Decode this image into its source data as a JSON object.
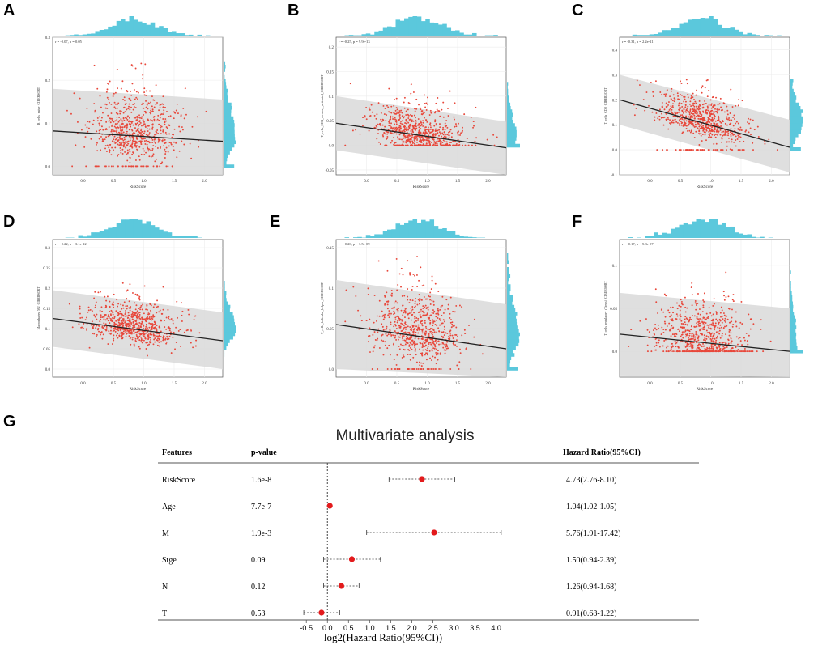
{
  "figure_labels": [
    "A",
    "B",
    "C",
    "D",
    "E",
    "F",
    "G"
  ],
  "colors": {
    "point": "#e8473a",
    "hist": "#5bc8dc",
    "band": "#d9d9d9",
    "line": "#222222",
    "marker": "#e31a1c"
  },
  "chart_data": [
    {
      "type": "scatter",
      "panel": "A",
      "xlabel": "RiskScore",
      "ylabel": "B_cells_naive_CIBERSORT",
      "annotation": "r = -0.07, p = 0.05",
      "xlim": [
        -0.5,
        2.3
      ],
      "ylim": [
        -0.02,
        0.3
      ],
      "xticks": [
        0.0,
        0.5,
        1.0,
        1.5,
        2.0
      ],
      "yticks": [
        0.0,
        0.1,
        0.2,
        0.3
      ],
      "n_points": 720,
      "x_mean": 0.85,
      "x_sd": 0.38,
      "floor": 0.0,
      "fit": {
        "x": [
          -0.5,
          2.3
        ],
        "y": [
          0.082,
          0.058
        ]
      },
      "band_upper": [
        0.18,
        0.155
      ],
      "band_lower": [
        -0.02,
        -0.04
      ]
    },
    {
      "type": "scatter",
      "panel": "B",
      "xlabel": "RiskScore",
      "ylabel": "T_cells_CD4_memory_activated_CIBERSORT",
      "annotation": "r = -0.25, p = 9.9e-13",
      "xlim": [
        -0.5,
        2.3
      ],
      "ylim": [
        -0.06,
        0.22
      ],
      "xticks": [
        0.0,
        0.5,
        1.0,
        1.5,
        2.0
      ],
      "yticks": [
        -0.05,
        0.0,
        0.05,
        0.1,
        0.15,
        0.2
      ],
      "n_points": 720,
      "x_mean": 0.85,
      "x_sd": 0.38,
      "floor": 0.0,
      "fit": {
        "x": [
          -0.5,
          2.3
        ],
        "y": [
          0.045,
          -0.005
        ]
      },
      "band_upper": [
        0.1,
        0.048
      ],
      "band_lower": [
        -0.01,
        -0.065
      ]
    },
    {
      "type": "scatter",
      "panel": "C",
      "xlabel": "RiskScore",
      "ylabel": "T_cells_CD8_CIBERSORT",
      "annotation": "r = -0.31, p = 2.2e-21",
      "xlim": [
        -0.5,
        2.3
      ],
      "ylim": [
        -0.1,
        0.45
      ],
      "xticks": [
        0.0,
        0.5,
        1.0,
        1.5,
        2.0
      ],
      "yticks": [
        -0.1,
        0.0,
        0.1,
        0.2,
        0.3,
        0.4
      ],
      "n_points": 720,
      "x_mean": 0.85,
      "x_sd": 0.38,
      "floor": 0.0,
      "fit": {
        "x": [
          -0.5,
          2.3
        ],
        "y": [
          0.2,
          0.01
        ]
      },
      "band_upper": [
        0.3,
        0.12
      ],
      "band_lower": [
        0.1,
        -0.09
      ]
    },
    {
      "type": "scatter",
      "panel": "D",
      "xlabel": "RiskScore",
      "ylabel": "Macrophages_M2_CIBERSORT",
      "annotation": "r = -0.22, p = 3.1e-12",
      "xlim": [
        -0.5,
        2.3
      ],
      "ylim": [
        -0.02,
        0.32
      ],
      "xticks": [
        0.0,
        0.5,
        1.0,
        1.5,
        2.0
      ],
      "yticks": [
        0.0,
        0.05,
        0.1,
        0.15,
        0.2,
        0.25,
        0.3
      ],
      "n_points": 720,
      "x_mean": 0.85,
      "x_sd": 0.38,
      "floor": null,
      "fit": {
        "x": [
          -0.5,
          2.3
        ],
        "y": [
          0.125,
          0.07
        ]
      },
      "band_upper": [
        0.195,
        0.14
      ],
      "band_lower": [
        0.055,
        0.0
      ]
    },
    {
      "type": "scatter",
      "panel": "E",
      "xlabel": "RiskScore",
      "ylabel": "T_cells_follicular_helper_CIBERSORT",
      "annotation": "r = -0.20, p = 3.5e-09",
      "xlim": [
        -0.5,
        2.3
      ],
      "ylim": [
        -0.01,
        0.16
      ],
      "xticks": [
        0.0,
        0.5,
        1.0,
        1.5,
        2.0
      ],
      "yticks": [
        0.0,
        0.05,
        0.1,
        0.15
      ],
      "n_points": 720,
      "x_mean": 0.85,
      "x_sd": 0.38,
      "floor": 0.0,
      "fit": {
        "x": [
          -0.5,
          2.3
        ],
        "y": [
          0.055,
          0.025
        ]
      },
      "band_upper": [
        0.11,
        0.08
      ],
      "band_lower": [
        0.0,
        -0.03
      ]
    },
    {
      "type": "scatter",
      "panel": "F",
      "xlabel": "RiskScore",
      "ylabel": "T_cells_regulatory_(Tregs)_CIBERSORT",
      "annotation": "r = -0.17, p = 5.8e-07",
      "xlim": [
        -0.5,
        2.3
      ],
      "ylim": [
        -0.03,
        0.13
      ],
      "xticks": [
        0.0,
        0.5,
        1.0,
        1.5,
        2.0
      ],
      "yticks": [
        0.0,
        0.05,
        0.1
      ],
      "n_points": 720,
      "x_mean": 0.85,
      "x_sd": 0.38,
      "floor": 0.0,
      "fit": {
        "x": [
          -0.5,
          2.3
        ],
        "y": [
          0.02,
          0.0
        ]
      },
      "band_upper": [
        0.068,
        0.05
      ],
      "band_lower": [
        -0.028,
        -0.05
      ]
    },
    {
      "type": "forest",
      "panel": "G",
      "title": "Multivariate analysis",
      "columns": {
        "features": "Features",
        "pvalue": "p-value",
        "hr": "Hazard Ratio(95%CI)"
      },
      "xlabel": "log2(Hazard Ratio(95%CI))",
      "xlim": [
        -0.6,
        4.2
      ],
      "xticks": [
        -0.5,
        0.0,
        0.5,
        1.0,
        1.5,
        2.0,
        2.5,
        3.0,
        3.5,
        4.0
      ],
      "xtick_labels": [
        "-0.5",
        "0.0",
        "0.5",
        "1.0",
        "1.5",
        "2.0",
        "2.5",
        "3.0",
        "3.5",
        "4.0"
      ],
      "rows": [
        {
          "feature": "RiskScore",
          "pvalue": "1.6e-8",
          "hr_text": "4.73(2.76-8.10)",
          "est": 2.24,
          "lo": 1.46,
          "hi": 3.02
        },
        {
          "feature": "Age",
          "pvalue": "7.7e-7",
          "hr_text": "1.04(1.02-1.05)",
          "est": 0.057,
          "lo": 0.029,
          "hi": 0.07
        },
        {
          "feature": "M",
          "pvalue": "1.9e-3",
          "hr_text": "5.76(1.91-17.42)",
          "est": 2.53,
          "lo": 0.93,
          "hi": 4.12
        },
        {
          "feature": "Stge",
          "pvalue": "0.09",
          "hr_text": "1.50(0.94-2.39)",
          "est": 0.58,
          "lo": -0.09,
          "hi": 1.26
        },
        {
          "feature": "N",
          "pvalue": "0.12",
          "hr_text": "1.26(0.94-1.68)",
          "est": 0.33,
          "lo": -0.09,
          "hi": 0.75
        },
        {
          "feature": "T",
          "pvalue": "0.53",
          "hr_text": "0.91(0.68-1.22)",
          "est": -0.14,
          "lo": -0.56,
          "hi": 0.29
        }
      ]
    }
  ]
}
